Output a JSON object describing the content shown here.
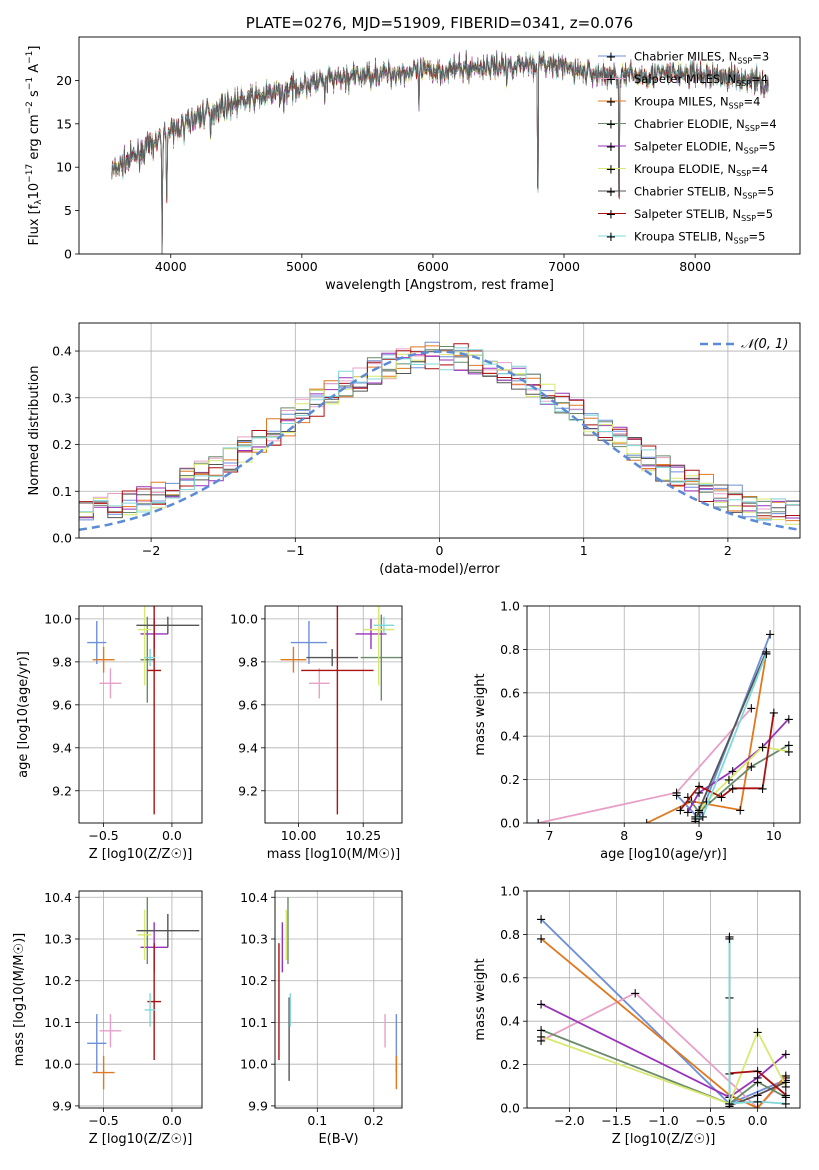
{
  "colors": {
    "chabrier_miles": "#6f8fd8",
    "salpeter_miles": "#e8a0c8",
    "kroupa_miles": "#e07820",
    "chabrier_elodie": "#6a8a6a",
    "salpeter_elodie": "#9933bb",
    "kroupa_elodie": "#d8e870",
    "chabrier_stelib": "#555555",
    "salpeter_stelib": "#aa1111",
    "kroupa_stelib": "#80d8d8"
  },
  "chart_data": [
    {
      "id": "spectrum",
      "type": "line",
      "title": "PLATE=0276, MJD=51909, FIBERID=0341, z=0.076",
      "xlabel": "wavelength [Angstrom, rest frame]",
      "ylabel": "Flux [f_λ10^-17 erg cm^-2 s^-1 A^-1]",
      "xlim": [
        3300,
        8800
      ],
      "ylim": [
        0,
        25
      ],
      "xticks": [
        4000,
        5000,
        6000,
        7000,
        8000
      ],
      "yticks": [
        0,
        5,
        10,
        15,
        20
      ],
      "continuum": [
        [
          3550,
          9.5
        ],
        [
          3650,
          10.5
        ],
        [
          3800,
          12
        ],
        [
          3950,
          13.5
        ],
        [
          4100,
          15
        ],
        [
          4300,
          16.5
        ],
        [
          4500,
          17.5
        ],
        [
          4800,
          18.5
        ],
        [
          5000,
          19.5
        ],
        [
          5300,
          20.2
        ],
        [
          5600,
          20.8
        ],
        [
          5900,
          21
        ],
        [
          6200,
          21.3
        ],
        [
          6500,
          21.7
        ],
        [
          6800,
          22
        ],
        [
          7000,
          21.5
        ],
        [
          7200,
          20.8
        ],
        [
          7500,
          20.5
        ],
        [
          7800,
          20.8
        ],
        [
          8100,
          20.6
        ],
        [
          8400,
          20.2
        ],
        [
          8550,
          19.5
        ]
      ],
      "features": [
        [
          3934,
          0
        ],
        [
          3969,
          5
        ],
        [
          4102,
          13
        ],
        [
          4304,
          12
        ],
        [
          4861,
          16
        ],
        [
          5175,
          17
        ],
        [
          5893,
          16
        ],
        [
          6563,
          19
        ],
        [
          6800,
          0
        ],
        [
          7420,
          0
        ]
      ],
      "legend": [
        {
          "key": "chabrier_miles",
          "name": "Chabrier MILES",
          "nssp": "3"
        },
        {
          "key": "salpeter_miles",
          "name": "Salpeter MILES",
          "nssp": "4"
        },
        {
          "key": "kroupa_miles",
          "name": "Kroupa MILES",
          "nssp": "4"
        },
        {
          "key": "chabrier_elodie",
          "name": "Chabrier ELODIE",
          "nssp": "4"
        },
        {
          "key": "salpeter_elodie",
          "name": "Salpeter ELODIE",
          "nssp": "5"
        },
        {
          "key": "kroupa_elodie",
          "name": "Kroupa ELODIE",
          "nssp": "4"
        },
        {
          "key": "chabrier_stelib",
          "name": "Chabrier STELIB",
          "nssp": "5"
        },
        {
          "key": "salpeter_stelib",
          "name": "Salpeter STELIB",
          "nssp": "5"
        },
        {
          "key": "kroupa_stelib",
          "name": "Kroupa STELIB",
          "nssp": "5"
        }
      ],
      "legend_placement": "right"
    },
    {
      "id": "residuals",
      "type": "line",
      "xlabel": "(data-model)/error",
      "ylabel": "Normed distribution",
      "xlim": [
        -2.5,
        2.5
      ],
      "ylim": [
        0,
        0.46
      ],
      "xticks": [
        -2,
        -1,
        0,
        1,
        2
      ],
      "yticks": [
        0.0,
        0.1,
        0.2,
        0.3,
        0.4
      ],
      "bin_width": 0.1,
      "legend": "𝒩(0, 1)",
      "legend_placement": "top-right",
      "grid": true
    },
    {
      "id": "age_vs_Z",
      "type": "scatter",
      "xlabel": "Z [log10(Z/Z☉)]",
      "ylabel": "age  [log10(age/yr)]",
      "xlim": [
        -0.68,
        0.22
      ],
      "ylim": [
        9.05,
        10.06
      ],
      "xticks": [
        -0.5,
        0.0
      ],
      "yticks": [
        9.2,
        9.4,
        9.6,
        9.8,
        10.0
      ],
      "points": [
        {
          "key": "chabrier_miles",
          "x": -0.55,
          "y": 9.89,
          "xerr": 0.07,
          "yerr": 0.1
        },
        {
          "key": "salpeter_miles",
          "x": -0.45,
          "y": 9.7,
          "xerr": 0.08,
          "yerr": 0.07
        },
        {
          "key": "kroupa_miles",
          "x": -0.5,
          "y": 9.81,
          "xerr": 0.08,
          "yerr": 0.06
        },
        {
          "key": "chabrier_elodie",
          "x": -0.18,
          "y": 9.81,
          "xerr": 0.05,
          "yerr": 0.2
        },
        {
          "key": "salpeter_elodie",
          "x": -0.13,
          "y": 9.93,
          "xerr": 0.1,
          "yerr": 0.07
        },
        {
          "key": "kroupa_elodie",
          "x": -0.2,
          "y": 9.95,
          "xerr": 0.05,
          "yerr": 0.26
        },
        {
          "key": "chabrier_stelib",
          "x": -0.03,
          "y": 9.97,
          "xerr": 0.23,
          "yerr": 0.04
        },
        {
          "key": "salpeter_stelib",
          "x": -0.13,
          "y": 9.76,
          "xerr": 0.05,
          "yerr": 0.67
        },
        {
          "key": "kroupa_stelib",
          "x": -0.16,
          "y": 9.82,
          "xerr": 0.04,
          "yerr": 0.04
        }
      ]
    },
    {
      "id": "age_vs_mass",
      "type": "scatter",
      "xlabel": "mass [log10(M/M☉)]",
      "ylabel": "",
      "xlim": [
        9.87,
        10.4
      ],
      "ylim": [
        9.05,
        10.06
      ],
      "xticks": [
        10.0,
        10.25
      ],
      "yticks": [
        9.2,
        9.4,
        9.6,
        9.8,
        10.0
      ],
      "points": [
        {
          "key": "chabrier_miles",
          "x": 10.04,
          "y": 9.89,
          "xerr": 0.07,
          "yerr": 0.1
        },
        {
          "key": "salpeter_miles",
          "x": 10.08,
          "y": 9.7,
          "xerr": 0.04,
          "yerr": 0.07
        },
        {
          "key": "kroupa_miles",
          "x": 9.98,
          "y": 9.81,
          "xerr": 0.05,
          "yerr": 0.06
        },
        {
          "key": "chabrier_elodie",
          "x": 10.32,
          "y": 9.82,
          "xerr": 0.08,
          "yerr": 0.2
        },
        {
          "key": "salpeter_elodie",
          "x": 10.28,
          "y": 9.93,
          "xerr": 0.06,
          "yerr": 0.07
        },
        {
          "key": "kroupa_elodie",
          "x": 10.31,
          "y": 9.95,
          "xerr": 0.06,
          "yerr": 0.26
        },
        {
          "key": "chabrier_stelib",
          "x": 10.13,
          "y": 9.82,
          "xerr": 0.1,
          "yerr": 0.04
        },
        {
          "key": "salpeter_stelib",
          "x": 10.15,
          "y": 9.76,
          "xerr": 0.14,
          "yerr": 0.67
        },
        {
          "key": "kroupa_stelib",
          "x": 10.33,
          "y": 9.97,
          "xerr": 0.04,
          "yerr": 0.04
        }
      ]
    },
    {
      "id": "weight_vs_age",
      "type": "line",
      "xlabel": "age  [log10(age/yr)]",
      "ylabel": "mass weight",
      "xlim": [
        6.7,
        10.35
      ],
      "ylim": [
        0,
        1.0
      ],
      "xticks": [
        7,
        8,
        9,
        10
      ],
      "yticks": [
        0.0,
        0.2,
        0.4,
        0.6,
        0.8,
        1.0
      ],
      "series": [
        {
          "key": "chabrier_miles",
          "x": [
            8.7,
            9.0,
            9.95
          ],
          "y": [
            0.13,
            0.02,
            0.87
          ]
        },
        {
          "key": "salpeter_miles",
          "x": [
            6.85,
            8.7,
            9.7
          ],
          "y": [
            0.0,
            0.14,
            0.53
          ]
        },
        {
          "key": "kroupa_miles",
          "x": [
            8.3,
            8.9,
            9.55,
            9.9
          ],
          "y": [
            0.0,
            0.1,
            0.06,
            0.78
          ]
        },
        {
          "key": "chabrier_elodie",
          "x": [
            8.85,
            9.0,
            9.7,
            10.2
          ],
          "y": [
            0.12,
            0.05,
            0.26,
            0.36
          ]
        },
        {
          "key": "salpeter_elodie",
          "x": [
            8.85,
            9.0,
            9.45,
            9.85,
            10.2
          ],
          "y": [
            0.05,
            0.14,
            0.24,
            0.35,
            0.48
          ]
        },
        {
          "key": "kroupa_elodie",
          "x": [
            8.95,
            9.1,
            9.4,
            9.85,
            10.2
          ],
          "y": [
            0.03,
            0.1,
            0.2,
            0.35,
            0.33
          ]
        },
        {
          "key": "chabrier_stelib",
          "x": [
            8.95,
            9.0,
            9.9
          ],
          "y": [
            0.01,
            0.06,
            0.79
          ]
        },
        {
          "key": "salpeter_stelib",
          "x": [
            8.75,
            9.0,
            9.3,
            9.45,
            9.85,
            10.0
          ],
          "y": [
            0.06,
            0.17,
            0.12,
            0.16,
            0.16,
            0.51
          ]
        },
        {
          "key": "kroupa_stelib",
          "x": [
            8.95,
            9.05,
            9.9
          ],
          "y": [
            0.02,
            0.03,
            0.78
          ]
        }
      ]
    },
    {
      "id": "mass_vs_Z",
      "type": "scatter",
      "xlabel": "Z [log10(Z/Z☉)]",
      "ylabel": "mass [log10(M/M☉)]",
      "xlim": [
        -0.68,
        0.22
      ],
      "ylim": [
        9.895,
        10.415
      ],
      "xticks": [
        -0.5,
        0.0
      ],
      "yticks": [
        9.9,
        10.0,
        10.1,
        10.2,
        10.3,
        10.4
      ],
      "points": [
        {
          "key": "chabrier_miles",
          "x": -0.55,
          "y": 10.05,
          "xerr": 0.07,
          "yerr": 0.07
        },
        {
          "key": "salpeter_miles",
          "x": -0.45,
          "y": 10.08,
          "xerr": 0.08,
          "yerr": 0.04
        },
        {
          "key": "kroupa_miles",
          "x": -0.5,
          "y": 9.98,
          "xerr": 0.08,
          "yerr": 0.04
        },
        {
          "key": "chabrier_elodie",
          "x": -0.18,
          "y": 10.32,
          "xerr": 0.05,
          "yerr": 0.08
        },
        {
          "key": "salpeter_elodie",
          "x": -0.13,
          "y": 10.28,
          "xerr": 0.1,
          "yerr": 0.06
        },
        {
          "key": "kroupa_elodie",
          "x": -0.2,
          "y": 10.31,
          "xerr": 0.05,
          "yerr": 0.06
        },
        {
          "key": "chabrier_stelib",
          "x": -0.03,
          "y": 10.32,
          "xerr": 0.23,
          "yerr": 0.04
        },
        {
          "key": "salpeter_stelib",
          "x": -0.13,
          "y": 10.15,
          "xerr": 0.05,
          "yerr": 0.14
        },
        {
          "key": "kroupa_stelib",
          "x": -0.16,
          "y": 10.13,
          "xerr": 0.04,
          "yerr": 0.04
        }
      ]
    },
    {
      "id": "mass_vs_ebv",
      "type": "scatter",
      "xlabel": "E(B-V)",
      "ylabel": "",
      "xlim": [
        0.025,
        0.25
      ],
      "ylim": [
        9.895,
        10.415
      ],
      "xticks": [
        0.1,
        0.2
      ],
      "yticks": [
        9.9,
        10.0,
        10.1,
        10.2,
        10.3,
        10.4
      ],
      "points": [
        {
          "key": "chabrier_miles",
          "x": 0.24,
          "y": 10.05,
          "yerr": 0.07
        },
        {
          "key": "salpeter_miles",
          "x": 0.22,
          "y": 10.08,
          "yerr": 0.04
        },
        {
          "key": "kroupa_miles",
          "x": 0.24,
          "y": 9.98,
          "yerr": 0.04
        },
        {
          "key": "chabrier_elodie",
          "x": 0.048,
          "y": 10.32,
          "yerr": 0.08
        },
        {
          "key": "salpeter_elodie",
          "x": 0.038,
          "y": 10.28,
          "yerr": 0.06
        },
        {
          "key": "kroupa_elodie",
          "x": 0.045,
          "y": 10.31,
          "yerr": 0.06
        },
        {
          "key": "chabrier_stelib",
          "x": 0.05,
          "y": 10.06,
          "yerr": 0.1
        },
        {
          "key": "salpeter_stelib",
          "x": 0.032,
          "y": 10.15,
          "yerr": 0.14
        },
        {
          "key": "kroupa_stelib",
          "x": 0.052,
          "y": 10.13,
          "yerr": 0.04
        }
      ]
    },
    {
      "id": "weight_vs_Z",
      "type": "line",
      "xlabel": "Z [log10(Z/Z☉)]",
      "ylabel": "mass weight",
      "xlim": [
        -2.45,
        0.45
      ],
      "ylim": [
        0,
        1.0
      ],
      "xticks": [
        -2.0,
        -1.5,
        -1.0,
        -0.5,
        0.0
      ],
      "yticks": [
        0.0,
        0.2,
        0.4,
        0.6,
        0.8,
        1.0
      ],
      "series": [
        {
          "key": "chabrier_miles",
          "x": [
            -2.3,
            -0.3,
            0.3
          ],
          "y": [
            0.87,
            0.02,
            0.13
          ]
        },
        {
          "key": "salpeter_miles",
          "x": [
            -2.3,
            -1.3,
            0.0,
            0.3
          ],
          "y": [
            0.31,
            0.53,
            0.0,
            0.14
          ]
        },
        {
          "key": "kroupa_miles",
          "x": [
            -2.3,
            -0.3,
            0.0,
            0.3
          ],
          "y": [
            0.78,
            0.06,
            0.0,
            0.15
          ]
        },
        {
          "key": "chabrier_elodie",
          "x": [
            -2.3,
            -0.3,
            0.0,
            0.3
          ],
          "y": [
            0.36,
            0.02,
            0.12,
            0.05
          ]
        },
        {
          "key": "salpeter_elodie",
          "x": [
            -2.3,
            -0.3,
            0.0,
            0.3
          ],
          "y": [
            0.48,
            0.05,
            0.14,
            0.25
          ]
        },
        {
          "key": "kroupa_elodie",
          "x": [
            -2.3,
            -0.3,
            0.0,
            0.3
          ],
          "y": [
            0.33,
            0.02,
            0.35,
            0.1
          ]
        },
        {
          "key": "chabrier_stelib",
          "x": [
            -0.3,
            -0.3,
            0.0,
            0.3
          ],
          "y": [
            0.79,
            0.01,
            0.06,
            0.12
          ]
        },
        {
          "key": "salpeter_stelib",
          "x": [
            -0.3,
            -0.3,
            0.0,
            0.3
          ],
          "y": [
            0.51,
            0.16,
            0.17,
            0.06
          ]
        },
        {
          "key": "kroupa_stelib",
          "x": [
            -0.3,
            -0.3,
            0.0,
            0.3
          ],
          "y": [
            0.78,
            0.02,
            0.03,
            0.02
          ]
        }
      ]
    }
  ]
}
